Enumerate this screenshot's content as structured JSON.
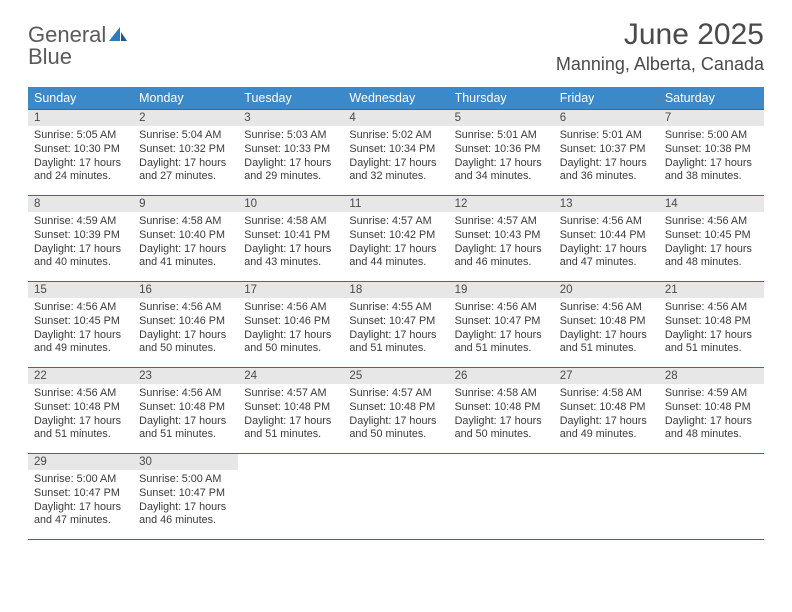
{
  "brand": {
    "line1": "General",
    "line2": "Blue"
  },
  "title": "June 2025",
  "location": "Manning, Alberta, Canada",
  "colors": {
    "header_bg": "#3b89c9",
    "header_text": "#ffffff",
    "rule": "#3b6a93",
    "daynum_bg": "#e7e7e7",
    "text": "#3a3a3a",
    "brand_blue": "#2d7cc1"
  },
  "weekdays": [
    "Sunday",
    "Monday",
    "Tuesday",
    "Wednesday",
    "Thursday",
    "Friday",
    "Saturday"
  ],
  "weeks": [
    [
      {
        "n": "1",
        "sr": "Sunrise: 5:05 AM",
        "ss": "Sunset: 10:30 PM",
        "dl1": "Daylight: 17 hours",
        "dl2": "and 24 minutes."
      },
      {
        "n": "2",
        "sr": "Sunrise: 5:04 AM",
        "ss": "Sunset: 10:32 PM",
        "dl1": "Daylight: 17 hours",
        "dl2": "and 27 minutes."
      },
      {
        "n": "3",
        "sr": "Sunrise: 5:03 AM",
        "ss": "Sunset: 10:33 PM",
        "dl1": "Daylight: 17 hours",
        "dl2": "and 29 minutes."
      },
      {
        "n": "4",
        "sr": "Sunrise: 5:02 AM",
        "ss": "Sunset: 10:34 PM",
        "dl1": "Daylight: 17 hours",
        "dl2": "and 32 minutes."
      },
      {
        "n": "5",
        "sr": "Sunrise: 5:01 AM",
        "ss": "Sunset: 10:36 PM",
        "dl1": "Daylight: 17 hours",
        "dl2": "and 34 minutes."
      },
      {
        "n": "6",
        "sr": "Sunrise: 5:01 AM",
        "ss": "Sunset: 10:37 PM",
        "dl1": "Daylight: 17 hours",
        "dl2": "and 36 minutes."
      },
      {
        "n": "7",
        "sr": "Sunrise: 5:00 AM",
        "ss": "Sunset: 10:38 PM",
        "dl1": "Daylight: 17 hours",
        "dl2": "and 38 minutes."
      }
    ],
    [
      {
        "n": "8",
        "sr": "Sunrise: 4:59 AM",
        "ss": "Sunset: 10:39 PM",
        "dl1": "Daylight: 17 hours",
        "dl2": "and 40 minutes."
      },
      {
        "n": "9",
        "sr": "Sunrise: 4:58 AM",
        "ss": "Sunset: 10:40 PM",
        "dl1": "Daylight: 17 hours",
        "dl2": "and 41 minutes."
      },
      {
        "n": "10",
        "sr": "Sunrise: 4:58 AM",
        "ss": "Sunset: 10:41 PM",
        "dl1": "Daylight: 17 hours",
        "dl2": "and 43 minutes."
      },
      {
        "n": "11",
        "sr": "Sunrise: 4:57 AM",
        "ss": "Sunset: 10:42 PM",
        "dl1": "Daylight: 17 hours",
        "dl2": "and 44 minutes."
      },
      {
        "n": "12",
        "sr": "Sunrise: 4:57 AM",
        "ss": "Sunset: 10:43 PM",
        "dl1": "Daylight: 17 hours",
        "dl2": "and 46 minutes."
      },
      {
        "n": "13",
        "sr": "Sunrise: 4:56 AM",
        "ss": "Sunset: 10:44 PM",
        "dl1": "Daylight: 17 hours",
        "dl2": "and 47 minutes."
      },
      {
        "n": "14",
        "sr": "Sunrise: 4:56 AM",
        "ss": "Sunset: 10:45 PM",
        "dl1": "Daylight: 17 hours",
        "dl2": "and 48 minutes."
      }
    ],
    [
      {
        "n": "15",
        "sr": "Sunrise: 4:56 AM",
        "ss": "Sunset: 10:45 PM",
        "dl1": "Daylight: 17 hours",
        "dl2": "and 49 minutes."
      },
      {
        "n": "16",
        "sr": "Sunrise: 4:56 AM",
        "ss": "Sunset: 10:46 PM",
        "dl1": "Daylight: 17 hours",
        "dl2": "and 50 minutes."
      },
      {
        "n": "17",
        "sr": "Sunrise: 4:56 AM",
        "ss": "Sunset: 10:46 PM",
        "dl1": "Daylight: 17 hours",
        "dl2": "and 50 minutes."
      },
      {
        "n": "18",
        "sr": "Sunrise: 4:55 AM",
        "ss": "Sunset: 10:47 PM",
        "dl1": "Daylight: 17 hours",
        "dl2": "and 51 minutes."
      },
      {
        "n": "19",
        "sr": "Sunrise: 4:56 AM",
        "ss": "Sunset: 10:47 PM",
        "dl1": "Daylight: 17 hours",
        "dl2": "and 51 minutes."
      },
      {
        "n": "20",
        "sr": "Sunrise: 4:56 AM",
        "ss": "Sunset: 10:48 PM",
        "dl1": "Daylight: 17 hours",
        "dl2": "and 51 minutes."
      },
      {
        "n": "21",
        "sr": "Sunrise: 4:56 AM",
        "ss": "Sunset: 10:48 PM",
        "dl1": "Daylight: 17 hours",
        "dl2": "and 51 minutes."
      }
    ],
    [
      {
        "n": "22",
        "sr": "Sunrise: 4:56 AM",
        "ss": "Sunset: 10:48 PM",
        "dl1": "Daylight: 17 hours",
        "dl2": "and 51 minutes."
      },
      {
        "n": "23",
        "sr": "Sunrise: 4:56 AM",
        "ss": "Sunset: 10:48 PM",
        "dl1": "Daylight: 17 hours",
        "dl2": "and 51 minutes."
      },
      {
        "n": "24",
        "sr": "Sunrise: 4:57 AM",
        "ss": "Sunset: 10:48 PM",
        "dl1": "Daylight: 17 hours",
        "dl2": "and 51 minutes."
      },
      {
        "n": "25",
        "sr": "Sunrise: 4:57 AM",
        "ss": "Sunset: 10:48 PM",
        "dl1": "Daylight: 17 hours",
        "dl2": "and 50 minutes."
      },
      {
        "n": "26",
        "sr": "Sunrise: 4:58 AM",
        "ss": "Sunset: 10:48 PM",
        "dl1": "Daylight: 17 hours",
        "dl2": "and 50 minutes."
      },
      {
        "n": "27",
        "sr": "Sunrise: 4:58 AM",
        "ss": "Sunset: 10:48 PM",
        "dl1": "Daylight: 17 hours",
        "dl2": "and 49 minutes."
      },
      {
        "n": "28",
        "sr": "Sunrise: 4:59 AM",
        "ss": "Sunset: 10:48 PM",
        "dl1": "Daylight: 17 hours",
        "dl2": "and 48 minutes."
      }
    ],
    [
      {
        "n": "29",
        "sr": "Sunrise: 5:00 AM",
        "ss": "Sunset: 10:47 PM",
        "dl1": "Daylight: 17 hours",
        "dl2": "and 47 minutes."
      },
      {
        "n": "30",
        "sr": "Sunrise: 5:00 AM",
        "ss": "Sunset: 10:47 PM",
        "dl1": "Daylight: 17 hours",
        "dl2": "and 46 minutes."
      },
      null,
      null,
      null,
      null,
      null
    ]
  ]
}
